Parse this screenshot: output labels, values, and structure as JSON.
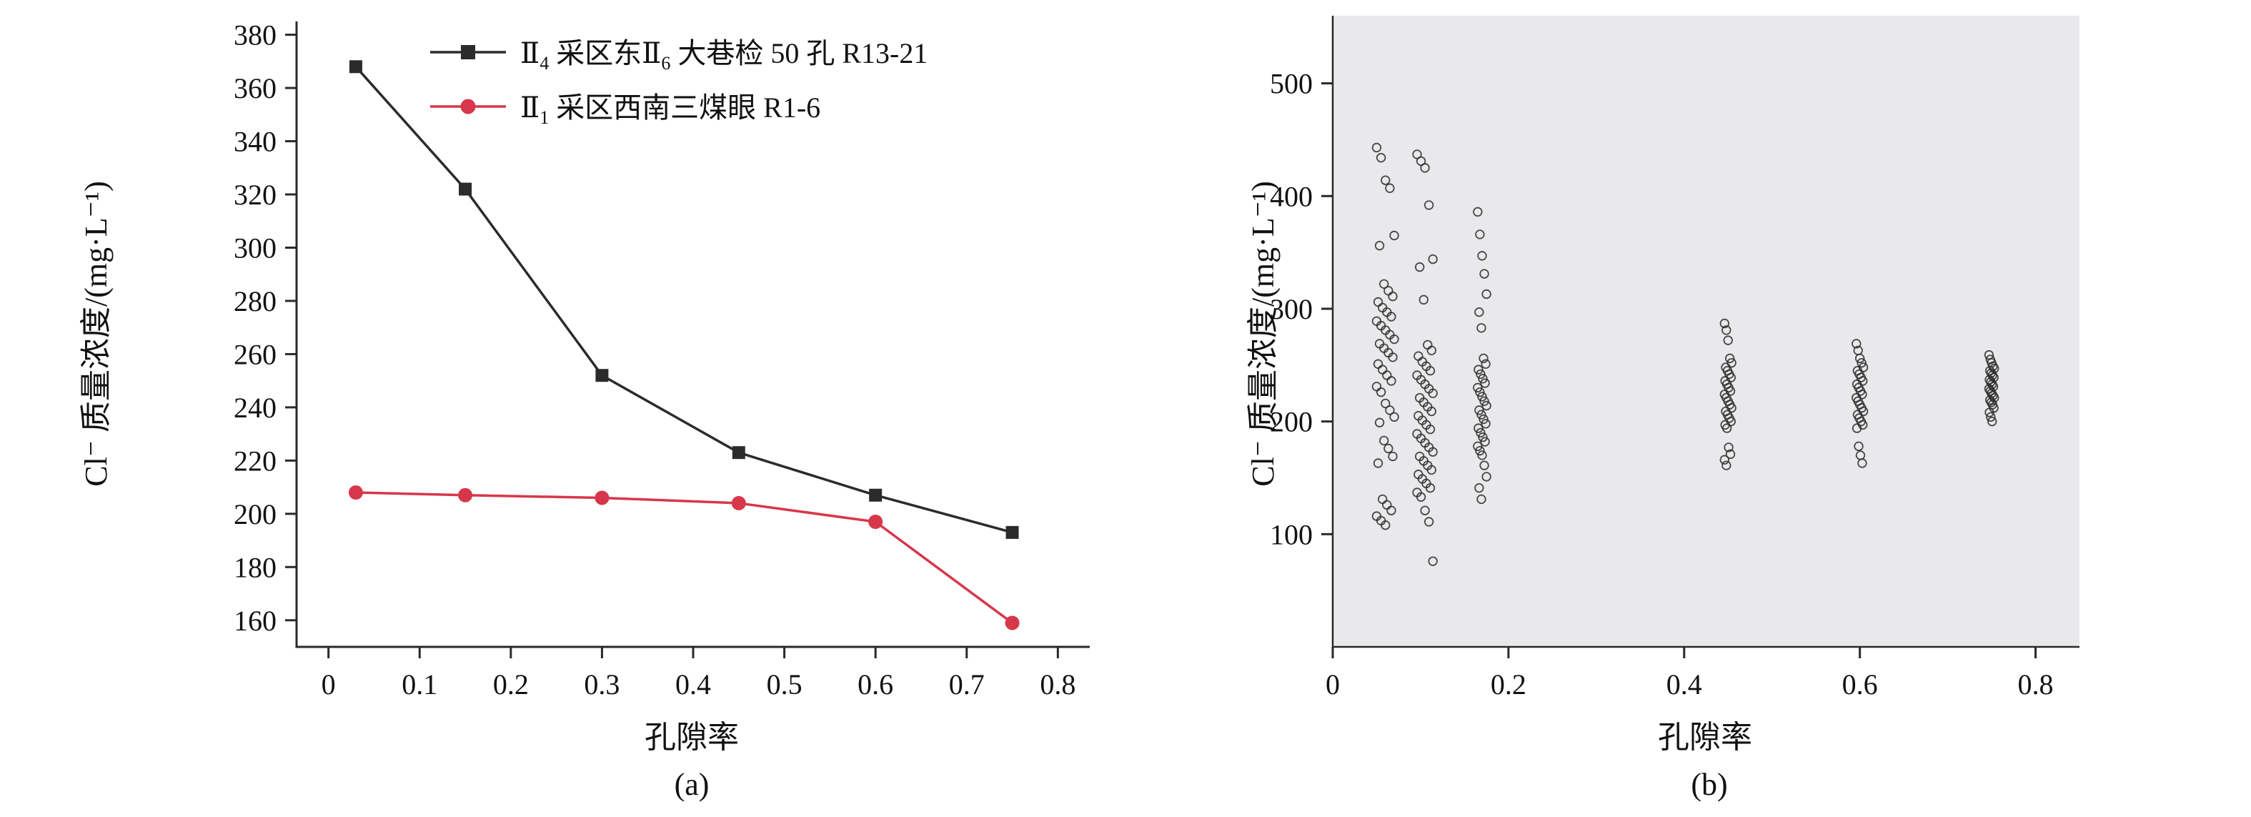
{
  "figure": {
    "background": "#ffffff",
    "ink": "#1a1a1a",
    "accent_red": "#d7374a",
    "panel_b_background": "#e9e9eb"
  },
  "chart_data": [
    {
      "id": "a",
      "type": "line",
      "caption": "(a)",
      "xlabel": "孔隙率",
      "ylabel": "Cl⁻ 质量浓度/(mg·L⁻¹)",
      "xlim": [
        -0.035,
        0.835
      ],
      "ylim": [
        150,
        385
      ],
      "xticks": [
        0,
        0.1,
        0.2,
        0.3,
        0.4,
        0.5,
        0.6,
        0.7,
        0.8
      ],
      "yticks": [
        160,
        180,
        200,
        220,
        240,
        260,
        280,
        300,
        320,
        340,
        360,
        380
      ],
      "grid": false,
      "legend_position": "inside-top-left",
      "series": [
        {
          "name_parts": [
            "Ⅱ",
            "4",
            " 采区东Ⅱ",
            "6",
            " 大巷检 50 孔 R13-21"
          ],
          "marker": "square",
          "color": "#2b2b2b",
          "x": [
            0.03,
            0.15,
            0.3,
            0.45,
            0.6,
            0.75
          ],
          "y": [
            368,
            322,
            252,
            223,
            207,
            193
          ]
        },
        {
          "name_parts": [
            "Ⅱ",
            "1",
            " 采区西南三煤眼 R1-6"
          ],
          "marker": "circle",
          "color": "#d7374a",
          "x": [
            0.03,
            0.15,
            0.3,
            0.45,
            0.6,
            0.75
          ],
          "y": [
            208,
            207,
            206,
            204,
            197,
            159
          ]
        }
      ]
    },
    {
      "id": "b",
      "type": "scatter",
      "caption": "(b)",
      "xlabel": "孔隙率",
      "ylabel": "Cl⁻ 质量浓度/(mg·L⁻¹)",
      "xlim": [
        0,
        0.85
      ],
      "ylim": [
        0,
        560
      ],
      "xticks": [
        0,
        0.2,
        0.4,
        0.6,
        0.8
      ],
      "yticks": [
        100,
        200,
        300,
        400,
        500
      ],
      "grid": false,
      "plot_bg": "#e9e9eb",
      "marker": "open-circle",
      "marker_color": "#2b2b2b",
      "clusters": [
        {
          "x": 0.06,
          "spread": 0.01,
          "y": [
            443,
            434,
            414,
            407,
            365,
            356,
            322,
            316,
            311,
            306,
            301,
            297,
            293,
            289,
            285,
            281,
            277,
            273,
            269,
            265,
            261,
            257,
            251,
            246,
            241,
            236,
            231,
            226,
            216,
            210,
            204,
            199,
            183,
            176,
            169,
            163,
            131,
            126,
            121,
            116,
            112,
            108
          ]
        },
        {
          "x": 0.105,
          "spread": 0.009,
          "y": [
            437,
            431,
            425,
            392,
            344,
            337,
            308,
            268,
            263,
            258,
            253,
            249,
            245,
            241,
            237,
            233,
            229,
            225,
            221,
            217,
            213,
            209,
            205,
            201,
            197,
            193,
            189,
            185,
            181,
            177,
            173,
            169,
            165,
            161,
            157,
            153,
            149,
            145,
            141,
            137,
            133,
            121,
            111,
            76
          ]
        },
        {
          "x": 0.17,
          "spread": 0.005,
          "y": [
            386,
            366,
            347,
            331,
            313,
            297,
            283,
            256,
            251,
            246,
            242,
            238,
            234,
            230,
            226,
            222,
            218,
            214,
            210,
            206,
            202,
            198,
            194,
            190,
            186,
            182,
            178,
            174,
            170,
            161,
            151,
            141,
            131
          ]
        },
        {
          "x": 0.45,
          "spread": 0.004,
          "y": [
            287,
            281,
            272,
            256,
            252,
            248,
            245,
            242,
            239,
            236,
            233,
            230,
            227,
            224,
            221,
            218,
            215,
            212,
            209,
            206,
            203,
            200,
            197,
            194,
            177,
            171,
            166,
            161
          ]
        },
        {
          "x": 0.6,
          "spread": 0.004,
          "y": [
            269,
            263,
            256,
            252,
            248,
            245,
            242,
            239,
            236,
            233,
            230,
            227,
            224,
            221,
            218,
            215,
            212,
            209,
            206,
            203,
            200,
            197,
            194,
            178,
            170,
            163
          ]
        },
        {
          "x": 0.75,
          "spread": 0.003,
          "y": [
            259,
            255,
            252,
            249,
            247,
            245,
            243,
            241,
            239,
            237,
            235,
            233,
            231,
            229,
            227,
            225,
            223,
            221,
            219,
            217,
            215,
            212,
            208,
            204,
            200
          ]
        }
      ]
    }
  ]
}
